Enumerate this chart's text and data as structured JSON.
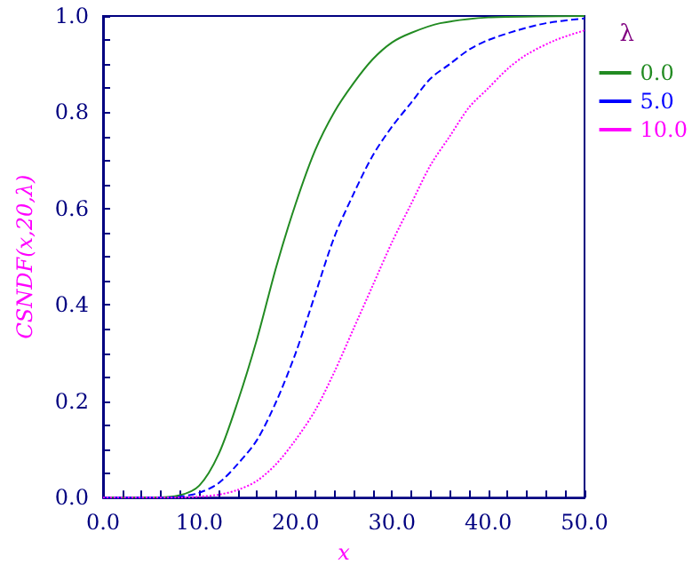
{
  "chart_data": {
    "type": "line",
    "xlabel": "x",
    "ylabel": "CSNDF(x,20,λ)",
    "legend_title": "λ",
    "legend": "top right",
    "grid": false,
    "xlim": [
      0,
      50
    ],
    "xticks": [
      {
        "value": 0,
        "label": "0.0"
      },
      {
        "value": 10,
        "label": "10.0"
      },
      {
        "value": 20,
        "label": "20.0"
      },
      {
        "value": 30,
        "label": "30.0"
      },
      {
        "value": 40,
        "label": "40.0"
      },
      {
        "value": 50,
        "label": "50.0"
      }
    ],
    "ylim": [
      0,
      1
    ],
    "yticks": [
      {
        "value": 0,
        "label": "0.0"
      },
      {
        "value": 0.2,
        "label": "0.2"
      },
      {
        "value": 0.4,
        "label": "0.4"
      },
      {
        "value": 0.6,
        "label": "0.6"
      },
      {
        "value": 0.8,
        "label": "0.8"
      },
      {
        "value": 1,
        "label": "1.0"
      }
    ],
    "series": [
      {
        "name": "0.0",
        "color": "#228b22",
        "line_style": "solid",
        "x": [
          0,
          5,
          8,
          10,
          12,
          14,
          16,
          18,
          20,
          22,
          24,
          26,
          28,
          30,
          32,
          35,
          40,
          45,
          50
        ],
        "values": [
          0,
          0,
          0.005,
          0.025,
          0.09,
          0.2,
          0.33,
          0.48,
          0.61,
          0.72,
          0.8,
          0.86,
          0.91,
          0.945,
          0.965,
          0.985,
          0.997,
          0.999,
          1
        ]
      },
      {
        "name": "5.0",
        "color": "#0000ff",
        "line_style": "dashed",
        "x": [
          0,
          6,
          8,
          10,
          12,
          14,
          16,
          18,
          20,
          22,
          24,
          26,
          28,
          30,
          32,
          34,
          36,
          38,
          40,
          43,
          46,
          50
        ],
        "values": [
          0,
          0,
          0.002,
          0.01,
          0.03,
          0.07,
          0.12,
          0.2,
          0.3,
          0.42,
          0.54,
          0.63,
          0.71,
          0.77,
          0.82,
          0.87,
          0.9,
          0.93,
          0.95,
          0.97,
          0.985,
          0.995
        ]
      },
      {
        "name": "10.0",
        "color": "#ff00ff",
        "line_style": "dotted",
        "x": [
          0,
          8,
          10,
          12,
          14,
          16,
          18,
          20,
          22,
          24,
          26,
          28,
          30,
          32,
          34,
          36,
          38,
          40,
          42,
          44,
          47,
          50
        ],
        "values": [
          0,
          0,
          0.002,
          0.006,
          0.016,
          0.035,
          0.07,
          0.12,
          0.18,
          0.26,
          0.35,
          0.44,
          0.53,
          0.61,
          0.69,
          0.75,
          0.81,
          0.85,
          0.89,
          0.92,
          0.95,
          0.97
        ]
      }
    ]
  }
}
